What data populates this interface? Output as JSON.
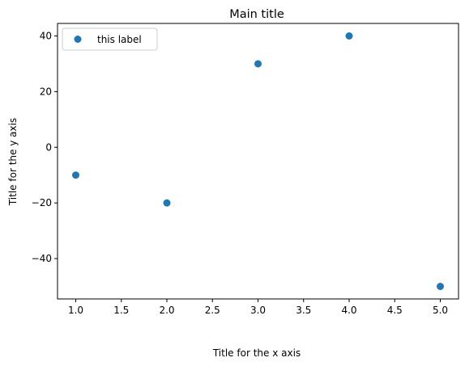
{
  "chart_data": {
    "type": "scatter",
    "title": "Main title",
    "xlabel": "Title for the x axis",
    "ylabel": "Title for the y axis",
    "x": [
      1,
      2,
      3,
      4,
      5
    ],
    "y": [
      -10,
      -20,
      30,
      40,
      -50
    ],
    "series": [
      {
        "name": "this label",
        "color": "#1f77b4"
      }
    ],
    "xlim": [
      0.8,
      5.2
    ],
    "ylim": [
      -54.5,
      44.5
    ],
    "xticks": [
      1.0,
      1.5,
      2.0,
      2.5,
      3.0,
      3.5,
      4.0,
      4.5,
      5.0
    ],
    "xtick_labels": [
      "1.0",
      "1.5",
      "2.0",
      "2.5",
      "3.0",
      "3.5",
      "4.0",
      "4.5",
      "5.0"
    ],
    "yticks": [
      -40,
      -20,
      0,
      20,
      40
    ],
    "ytick_labels": [
      "−40",
      "−20",
      "0",
      "20",
      "40"
    ],
    "grid": false,
    "legend_position": "top-left"
  }
}
